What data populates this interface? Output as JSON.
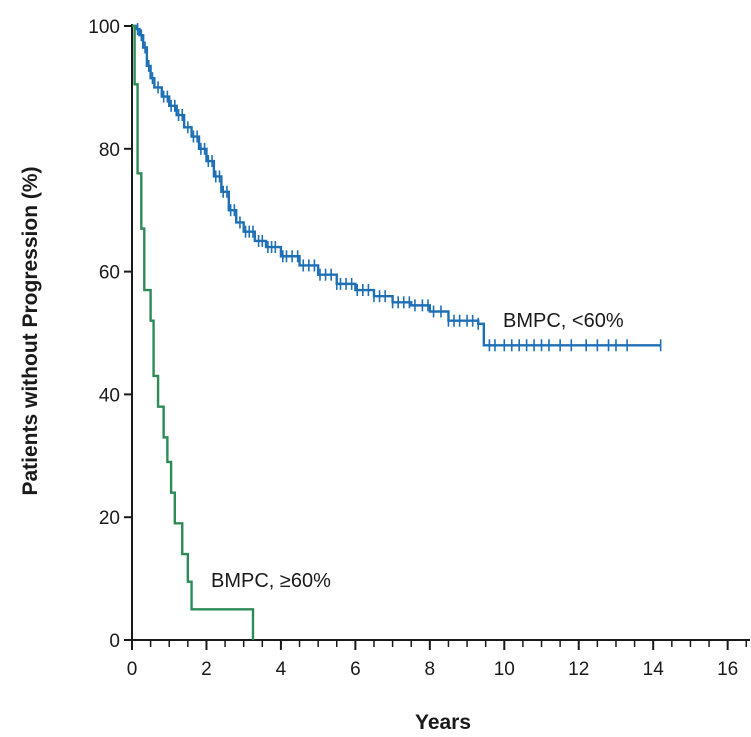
{
  "chart_data": {
    "type": "line",
    "subtype": "kaplan-meier step curve",
    "xlabel": "Years",
    "ylabel": "Patients without Progression (%)",
    "xlim": [
      0,
      16.6
    ],
    "ylim": [
      0,
      100
    ],
    "x_ticks": [
      0,
      2,
      4,
      6,
      8,
      10,
      12,
      14,
      16
    ],
    "y_ticks": [
      0,
      20,
      40,
      60,
      80,
      100
    ],
    "x_minor_step": 0.5,
    "grid": false,
    "series": [
      {
        "name": "BMPC, <60%",
        "color": "#1f6fb5",
        "label": "BMPC, <60%",
        "points": [
          [
            0,
            100
          ],
          [
            0.1,
            99.5
          ],
          [
            0.2,
            98.5
          ],
          [
            0.3,
            96.5
          ],
          [
            0.4,
            93.5
          ],
          [
            0.5,
            91.5
          ],
          [
            0.6,
            90
          ],
          [
            0.8,
            88.5
          ],
          [
            1,
            87
          ],
          [
            1.2,
            85.5
          ],
          [
            1.4,
            83.5
          ],
          [
            1.6,
            82
          ],
          [
            1.8,
            80
          ],
          [
            2,
            78
          ],
          [
            2.2,
            75.5
          ],
          [
            2.4,
            73
          ],
          [
            2.6,
            70
          ],
          [
            2.8,
            68
          ],
          [
            3,
            66.5
          ],
          [
            3.3,
            65
          ],
          [
            3.6,
            64
          ],
          [
            4,
            62.5
          ],
          [
            4.5,
            61
          ],
          [
            5,
            59.5
          ],
          [
            5.5,
            58
          ],
          [
            6,
            57
          ],
          [
            6.5,
            56
          ],
          [
            7,
            55
          ],
          [
            7.5,
            54.5
          ],
          [
            8,
            53.5
          ],
          [
            8.5,
            52
          ],
          [
            9.3,
            51.5
          ],
          [
            9.45,
            48
          ],
          [
            14.2,
            48
          ]
        ],
        "censor_x": [
          0.15,
          0.25,
          0.35,
          0.45,
          0.55,
          0.7,
          0.85,
          0.95,
          1.05,
          1.15,
          1.25,
          1.35,
          1.5,
          1.65,
          1.75,
          1.85,
          1.95,
          2.05,
          2.15,
          2.25,
          2.35,
          2.45,
          2.55,
          2.65,
          2.75,
          2.9,
          3.05,
          3.15,
          3.25,
          3.4,
          3.5,
          3.65,
          3.75,
          3.85,
          4.05,
          4.15,
          4.3,
          4.45,
          4.6,
          4.75,
          4.9,
          5.05,
          5.2,
          5.35,
          5.5,
          5.6,
          5.75,
          5.9,
          6.05,
          6.2,
          6.35,
          6.5,
          6.65,
          6.8,
          7.0,
          7.15,
          7.3,
          7.45,
          7.6,
          7.8,
          7.95,
          8.1,
          8.3,
          8.5,
          8.65,
          8.8,
          9.0,
          9.15,
          9.3,
          9.6,
          9.75,
          10.0,
          10.2,
          10.4,
          10.6,
          10.8,
          11.0,
          11.2,
          11.5,
          11.8,
          12.2,
          12.5,
          12.8,
          13.0,
          13.3,
          14.2
        ]
      },
      {
        "name": "BMPC, ≥60%",
        "color": "#2e8b57",
        "label": "BMPC, ≥60%",
        "points": [
          [
            0,
            100
          ],
          [
            0.07,
            90.5
          ],
          [
            0.15,
            76
          ],
          [
            0.25,
            67
          ],
          [
            0.33,
            57
          ],
          [
            0.5,
            52
          ],
          [
            0.58,
            43
          ],
          [
            0.7,
            38
          ],
          [
            0.85,
            33
          ],
          [
            0.95,
            29
          ],
          [
            1.05,
            24
          ],
          [
            1.15,
            19
          ],
          [
            1.35,
            14
          ],
          [
            1.5,
            9.5
          ],
          [
            1.6,
            5
          ],
          [
            3.25,
            5
          ],
          [
            3.25,
            0
          ]
        ],
        "censor_x": []
      }
    ]
  }
}
